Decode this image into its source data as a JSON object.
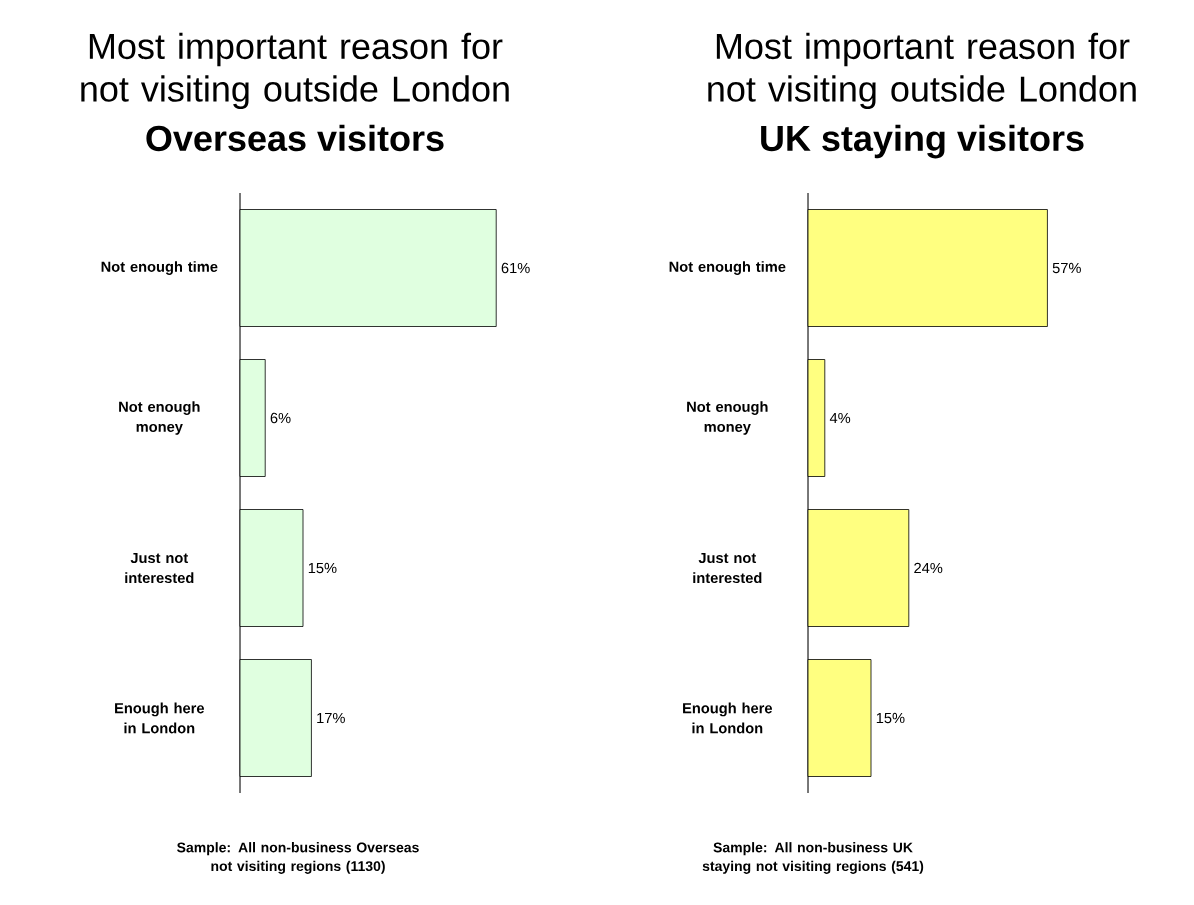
{
  "chart_data": [
    {
      "type": "bar",
      "orientation": "horizontal",
      "title": "Most important reason for not visiting outside London",
      "subtitle": "Overseas visitors",
      "categories": [
        "Not enough time",
        "Not enough money",
        "Just not interested",
        "Enough here in London"
      ],
      "values": [
        61,
        6,
        15,
        17
      ],
      "value_labels": [
        "61%",
        "6%",
        "15%",
        "17%"
      ],
      "color": "#e0ffe0",
      "annotations": [
        "Sample: All non-business Overseas not visiting regions (1130)"
      ]
    },
    {
      "type": "bar",
      "orientation": "horizontal",
      "title": "Most important reason for not visiting outside London",
      "subtitle": "UK staying visitors",
      "categories": [
        "Not enough time",
        "Not enough money",
        "Just not interested",
        "Enough here in London"
      ],
      "values": [
        57,
        4,
        24,
        15
      ],
      "value_labels": [
        "57%",
        "4%",
        "24%",
        "15%"
      ],
      "color": "#ffff80",
      "annotations": [
        "Sample: All non-business UK staying not visiting regions (541)"
      ]
    }
  ]
}
